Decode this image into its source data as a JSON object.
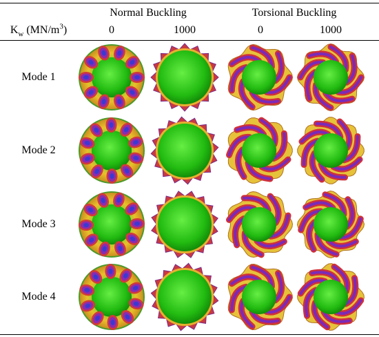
{
  "table": {
    "group_headers": [
      "Normal Buckling",
      "Torsional Buckling"
    ],
    "kw_label": {
      "symbol": "K",
      "subscript": "w",
      "unit": "(MN/m",
      "superscript": "3",
      "close": ")"
    },
    "columns": [
      "0",
      "1000",
      "0",
      "1000"
    ],
    "rows": [
      "Mode 1",
      "Mode 2",
      "Mode 3",
      "Mode 4"
    ]
  }
}
